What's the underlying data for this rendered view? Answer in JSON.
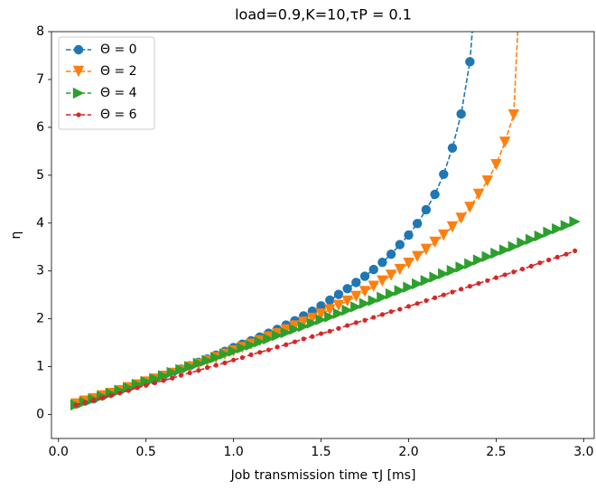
{
  "chart_data": {
    "type": "line",
    "title": "load=0.9,K=10,τP = 0.1",
    "x_label": "Job transmission time τJ [ms]",
    "y_label": "η",
    "xlim": [
      -0.04,
      3.06
    ],
    "ylim": [
      -0.5,
      8
    ],
    "xticks": [
      {
        "value": 0,
        "label": "0.0"
      },
      0.5,
      {
        "value": 1,
        "label": "1.0"
      },
      1.5,
      {
        "value": 2,
        "label": "2.0"
      },
      2.5,
      {
        "value": 3,
        "label": "3.0"
      }
    ],
    "yticks": [
      0,
      1,
      2,
      3,
      4,
      5,
      6,
      7,
      8
    ],
    "legend": "upper left",
    "series": [
      {
        "name": "Θ = 0",
        "color": "#1f77b4",
        "marker": "o",
        "x": [
          0.1,
          0.15,
          0.2,
          0.25,
          0.3,
          0.35,
          0.4,
          0.45,
          0.5,
          0.55,
          0.6,
          0.65,
          0.7,
          0.75,
          0.8,
          0.85,
          0.9,
          0.95,
          1.0,
          1.05,
          1.1,
          1.15,
          1.2,
          1.25,
          1.3,
          1.35,
          1.4,
          1.45,
          1.5,
          1.55,
          1.6,
          1.65,
          1.7,
          1.75,
          1.8,
          1.85,
          1.9,
          1.95,
          2.0,
          2.05,
          2.1,
          2.15,
          2.2,
          2.25,
          2.3,
          2.35,
          2.4
        ],
        "values": [
          0.22,
          0.28,
          0.33,
          0.39,
          0.45,
          0.51,
          0.57,
          0.63,
          0.69,
          0.75,
          0.82,
          0.88,
          0.95,
          1.02,
          1.09,
          1.16,
          1.24,
          1.32,
          1.4,
          1.47,
          1.54,
          1.62,
          1.7,
          1.78,
          1.87,
          1.96,
          2.06,
          2.16,
          2.27,
          2.39,
          2.51,
          2.63,
          2.76,
          2.89,
          3.03,
          3.18,
          3.35,
          3.55,
          3.75,
          3.99,
          4.28,
          4.6,
          5.02,
          5.57,
          6.28,
          7.37,
          9.7
        ]
      },
      {
        "name": "Θ = 2",
        "color": "#ff7f0e",
        "marker": "v",
        "x": [
          0.1,
          0.15,
          0.2,
          0.25,
          0.3,
          0.35,
          0.4,
          0.45,
          0.5,
          0.55,
          0.6,
          0.65,
          0.7,
          0.75,
          0.8,
          0.85,
          0.9,
          0.95,
          1.0,
          1.05,
          1.1,
          1.15,
          1.2,
          1.25,
          1.3,
          1.35,
          1.4,
          1.45,
          1.5,
          1.55,
          1.6,
          1.65,
          1.7,
          1.75,
          1.8,
          1.85,
          1.9,
          1.95,
          2.0,
          2.05,
          2.1,
          2.15,
          2.2,
          2.25,
          2.3,
          2.35,
          2.4,
          2.45,
          2.5,
          2.55,
          2.6,
          2.65
        ],
        "values": [
          0.22,
          0.28,
          0.33,
          0.39,
          0.44,
          0.5,
          0.56,
          0.62,
          0.68,
          0.74,
          0.8,
          0.86,
          0.92,
          0.99,
          1.05,
          1.12,
          1.19,
          1.26,
          1.33,
          1.4,
          1.47,
          1.54,
          1.62,
          1.69,
          1.77,
          1.85,
          1.93,
          2.01,
          2.1,
          2.19,
          2.28,
          2.37,
          2.47,
          2.57,
          2.68,
          2.79,
          2.91,
          3.03,
          3.16,
          3.3,
          3.45,
          3.6,
          3.75,
          3.92,
          4.1,
          4.33,
          4.6,
          4.88,
          5.22,
          5.69,
          6.26,
          10
        ]
      },
      {
        "name": "Θ = 4",
        "color": "#2ca02c",
        "marker": ">",
        "x": [
          0.1,
          0.15,
          0.2,
          0.25,
          0.3,
          0.35,
          0.4,
          0.45,
          0.5,
          0.55,
          0.6,
          0.65,
          0.7,
          0.75,
          0.8,
          0.85,
          0.9,
          0.95,
          1.0,
          1.05,
          1.1,
          1.15,
          1.2,
          1.25,
          1.3,
          1.35,
          1.4,
          1.45,
          1.5,
          1.55,
          1.6,
          1.65,
          1.7,
          1.75,
          1.8,
          1.85,
          1.9,
          1.95,
          2.0,
          2.05,
          2.1,
          2.15,
          2.2,
          2.25,
          2.3,
          2.35,
          2.4,
          2.45,
          2.5,
          2.55,
          2.6,
          2.65,
          2.7,
          2.75,
          2.8,
          2.85,
          2.9,
          2.95
        ],
        "values": [
          0.2,
          0.26,
          0.32,
          0.38,
          0.44,
          0.5,
          0.56,
          0.63,
          0.69,
          0.75,
          0.81,
          0.88,
          0.94,
          1.0,
          1.07,
          1.13,
          1.19,
          1.26,
          1.32,
          1.39,
          1.45,
          1.52,
          1.58,
          1.65,
          1.71,
          1.78,
          1.84,
          1.91,
          1.98,
          2.04,
          2.11,
          2.18,
          2.25,
          2.32,
          2.38,
          2.45,
          2.52,
          2.59,
          2.66,
          2.73,
          2.8,
          2.87,
          2.94,
          3.01,
          3.08,
          3.15,
          3.23,
          3.3,
          3.37,
          3.44,
          3.51,
          3.59,
          3.66,
          3.73,
          3.81,
          3.88,
          3.95,
          4.03
        ]
      },
      {
        "name": "Θ = 6",
        "color": "#d62728",
        "marker": ".",
        "x": [
          0.1,
          0.15,
          0.2,
          0.25,
          0.3,
          0.35,
          0.4,
          0.45,
          0.5,
          0.55,
          0.6,
          0.65,
          0.7,
          0.75,
          0.8,
          0.85,
          0.9,
          0.95,
          1.0,
          1.05,
          1.1,
          1.15,
          1.2,
          1.25,
          1.3,
          1.35,
          1.4,
          1.45,
          1.5,
          1.55,
          1.6,
          1.65,
          1.7,
          1.75,
          1.8,
          1.85,
          1.9,
          1.95,
          2.0,
          2.05,
          2.1,
          2.15,
          2.2,
          2.25,
          2.3,
          2.35,
          2.4,
          2.45,
          2.5,
          2.55,
          2.6,
          2.65,
          2.7,
          2.75,
          2.8,
          2.85,
          2.9,
          2.95
        ],
        "values": [
          0.2,
          0.25,
          0.3,
          0.35,
          0.4,
          0.45,
          0.5,
          0.56,
          0.61,
          0.66,
          0.71,
          0.76,
          0.82,
          0.87,
          0.92,
          0.98,
          1.03,
          1.08,
          1.14,
          1.19,
          1.25,
          1.3,
          1.35,
          1.41,
          1.46,
          1.52,
          1.58,
          1.63,
          1.69,
          1.74,
          1.8,
          1.86,
          1.92,
          1.97,
          2.03,
          2.09,
          2.15,
          2.2,
          2.26,
          2.32,
          2.38,
          2.44,
          2.5,
          2.56,
          2.62,
          2.68,
          2.74,
          2.8,
          2.86,
          2.92,
          2.98,
          3.04,
          3.1,
          3.17,
          3.23,
          3.29,
          3.35,
          3.42
        ]
      }
    ]
  }
}
